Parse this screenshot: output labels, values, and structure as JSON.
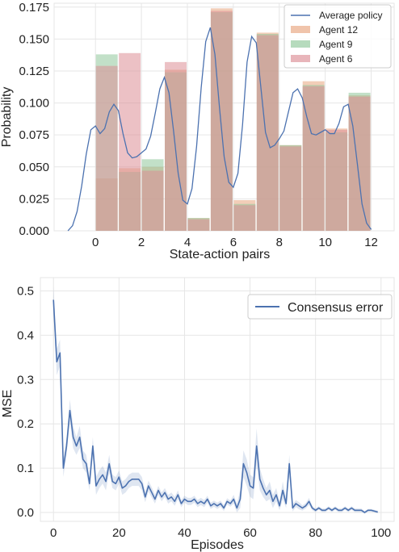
{
  "chart_data": [
    {
      "type": "bar",
      "xlabel": "State-action pairs",
      "ylabel": "Probability",
      "xlim": [
        -1.8,
        13.0
      ],
      "ylim": [
        0,
        0.178
      ],
      "xticks": [
        "0",
        "2",
        "4",
        "6",
        "8",
        "10",
        "12"
      ],
      "yticks": [
        "0.000",
        "0.025",
        "0.050",
        "0.075",
        "0.100",
        "0.125",
        "0.150",
        "0.175"
      ],
      "grid": true,
      "legend_position": "top-right",
      "categories": [
        0,
        1,
        2,
        3,
        4,
        5,
        6,
        7,
        8,
        9,
        10,
        11
      ],
      "series": [
        {
          "name": "Agent 12",
          "color": "#e8a57e",
          "values": [
            0.041,
            0.049,
            0.05,
            0.126,
            0.01,
            0.174,
            0.024,
            0.155,
            0.067,
            0.117,
            0.08,
            0.106
          ]
        },
        {
          "name": "Agent 9",
          "color": "#8fc79a",
          "values": [
            0.138,
            0.046,
            0.056,
            0.124,
            0.01,
            0.171,
            0.021,
            0.154,
            0.067,
            0.114,
            0.077,
            0.108
          ]
        },
        {
          "name": "Agent 6",
          "color": "#dc8e95",
          "values": [
            0.129,
            0.139,
            0.047,
            0.132,
            0.009,
            0.172,
            0.02,
            0.153,
            0.066,
            0.113,
            0.079,
            0.105
          ]
        }
      ],
      "line_series": {
        "name": "Average policy",
        "color": "#4c72b0",
        "x": [
          -1.2,
          -1.0,
          -0.8,
          -0.6,
          -0.4,
          -0.2,
          0.0,
          0.2,
          0.4,
          0.6,
          0.8,
          1.0,
          1.2,
          1.4,
          1.6,
          1.8,
          2.0,
          2.2,
          2.4,
          2.6,
          2.8,
          3.0,
          3.2,
          3.4,
          3.6,
          3.8,
          4.0,
          4.2,
          4.4,
          4.6,
          4.8,
          5.0,
          5.2,
          5.4,
          5.6,
          5.8,
          6.0,
          6.2,
          6.4,
          6.6,
          6.8,
          7.0,
          7.2,
          7.4,
          7.6,
          7.8,
          8.0,
          8.2,
          8.4,
          8.6,
          8.8,
          9.0,
          9.2,
          9.4,
          9.6,
          9.8,
          10.0,
          10.2,
          10.4,
          10.6,
          10.8,
          11.0,
          11.2,
          11.4,
          11.6,
          11.8,
          12.0
        ],
        "y": [
          0.0,
          0.004,
          0.015,
          0.035,
          0.06,
          0.079,
          0.082,
          0.076,
          0.08,
          0.093,
          0.099,
          0.094,
          0.076,
          0.061,
          0.057,
          0.058,
          0.061,
          0.064,
          0.074,
          0.092,
          0.111,
          0.12,
          0.108,
          0.078,
          0.045,
          0.024,
          0.021,
          0.033,
          0.066,
          0.112,
          0.148,
          0.159,
          0.138,
          0.096,
          0.058,
          0.038,
          0.034,
          0.045,
          0.083,
          0.132,
          0.152,
          0.147,
          0.112,
          0.077,
          0.065,
          0.067,
          0.072,
          0.078,
          0.093,
          0.108,
          0.111,
          0.104,
          0.089,
          0.076,
          0.075,
          0.077,
          0.079,
          0.076,
          0.076,
          0.084,
          0.097,
          0.099,
          0.082,
          0.052,
          0.021,
          0.006,
          0.001
        ]
      }
    },
    {
      "type": "line",
      "xlabel": "Episodes",
      "ylabel": "MSE",
      "xlim": [
        -4,
        104
      ],
      "ylim": [
        -0.02,
        0.53
      ],
      "xticks": [
        "0",
        "20",
        "40",
        "60",
        "80",
        "100"
      ],
      "yticks": [
        "0.0",
        "0.1",
        "0.2",
        "0.3",
        "0.4",
        "0.5"
      ],
      "grid": true,
      "legend_position": "top-right",
      "series": [
        {
          "name": "Consensus error",
          "color": "#4c72b0",
          "x": [
            0,
            1,
            2,
            3,
            4,
            5,
            6,
            7,
            8,
            9,
            10,
            11,
            12,
            13,
            14,
            15,
            16,
            17,
            18,
            19,
            20,
            21,
            22,
            23,
            24,
            25,
            26,
            27,
            28,
            29,
            30,
            31,
            32,
            33,
            34,
            35,
            36,
            37,
            38,
            39,
            40,
            41,
            42,
            43,
            44,
            45,
            46,
            47,
            48,
            49,
            50,
            51,
            52,
            53,
            54,
            55,
            56,
            57,
            58,
            59,
            60,
            61,
            62,
            63,
            64,
            65,
            66,
            67,
            68,
            69,
            70,
            71,
            72,
            73,
            74,
            75,
            76,
            77,
            78,
            79,
            80,
            81,
            82,
            83,
            84,
            85,
            86,
            87,
            88,
            89,
            90,
            91,
            92,
            93,
            94,
            95,
            96,
            97,
            98,
            99
          ],
          "values": [
            0.48,
            0.34,
            0.36,
            0.1,
            0.15,
            0.23,
            0.17,
            0.15,
            0.17,
            0.12,
            0.11,
            0.065,
            0.15,
            0.06,
            0.075,
            0.085,
            0.07,
            0.11,
            0.07,
            0.065,
            0.08,
            0.055,
            0.06,
            0.07,
            0.075,
            0.075,
            0.075,
            0.065,
            0.035,
            0.06,
            0.045,
            0.03,
            0.05,
            0.035,
            0.045,
            0.03,
            0.035,
            0.025,
            0.04,
            0.02,
            0.03,
            0.025,
            0.025,
            0.03,
            0.02,
            0.025,
            0.02,
            0.03,
            0.015,
            0.02,
            0.015,
            0.02,
            0.01,
            0.025,
            0.02,
            0.03,
            0.01,
            0.03,
            0.11,
            0.09,
            0.06,
            0.055,
            0.15,
            0.075,
            0.055,
            0.04,
            0.05,
            0.025,
            0.04,
            0.015,
            0.05,
            0.02,
            0.11,
            0.01,
            0.02,
            0.015,
            0.01,
            0.015,
            0.025,
            0.01,
            0.005,
            0.01,
            0.005,
            0.005,
            0.01,
            0.005,
            0.01,
            0.005,
            0.005,
            0.01,
            0.005,
            0.01,
            0.005,
            0.005,
            0.005,
            0.0,
            0.005,
            0.005,
            0.003,
            0.001
          ],
          "band_halfwidth": [
            0.03,
            0.03,
            0.03,
            0.02,
            0.02,
            0.025,
            0.025,
            0.02,
            0.025,
            0.02,
            0.02,
            0.015,
            0.02,
            0.02,
            0.02,
            0.02,
            0.02,
            0.02,
            0.015,
            0.015,
            0.015,
            0.015,
            0.015,
            0.015,
            0.015,
            0.015,
            0.015,
            0.015,
            0.012,
            0.012,
            0.012,
            0.01,
            0.01,
            0.01,
            0.01,
            0.01,
            0.01,
            0.01,
            0.01,
            0.008,
            0.008,
            0.008,
            0.008,
            0.008,
            0.008,
            0.008,
            0.008,
            0.008,
            0.007,
            0.007,
            0.007,
            0.007,
            0.007,
            0.007,
            0.007,
            0.01,
            0.01,
            0.02,
            0.03,
            0.03,
            0.025,
            0.025,
            0.04,
            0.025,
            0.02,
            0.015,
            0.02,
            0.015,
            0.015,
            0.01,
            0.02,
            0.01,
            0.02,
            0.008,
            0.008,
            0.008,
            0.006,
            0.006,
            0.008,
            0.005,
            0.004,
            0.004,
            0.004,
            0.004,
            0.004,
            0.004,
            0.004,
            0.004,
            0.004,
            0.004,
            0.004,
            0.004,
            0.004,
            0.004,
            0.004,
            0.003,
            0.003,
            0.003,
            0.003,
            0.003
          ]
        }
      ]
    }
  ]
}
